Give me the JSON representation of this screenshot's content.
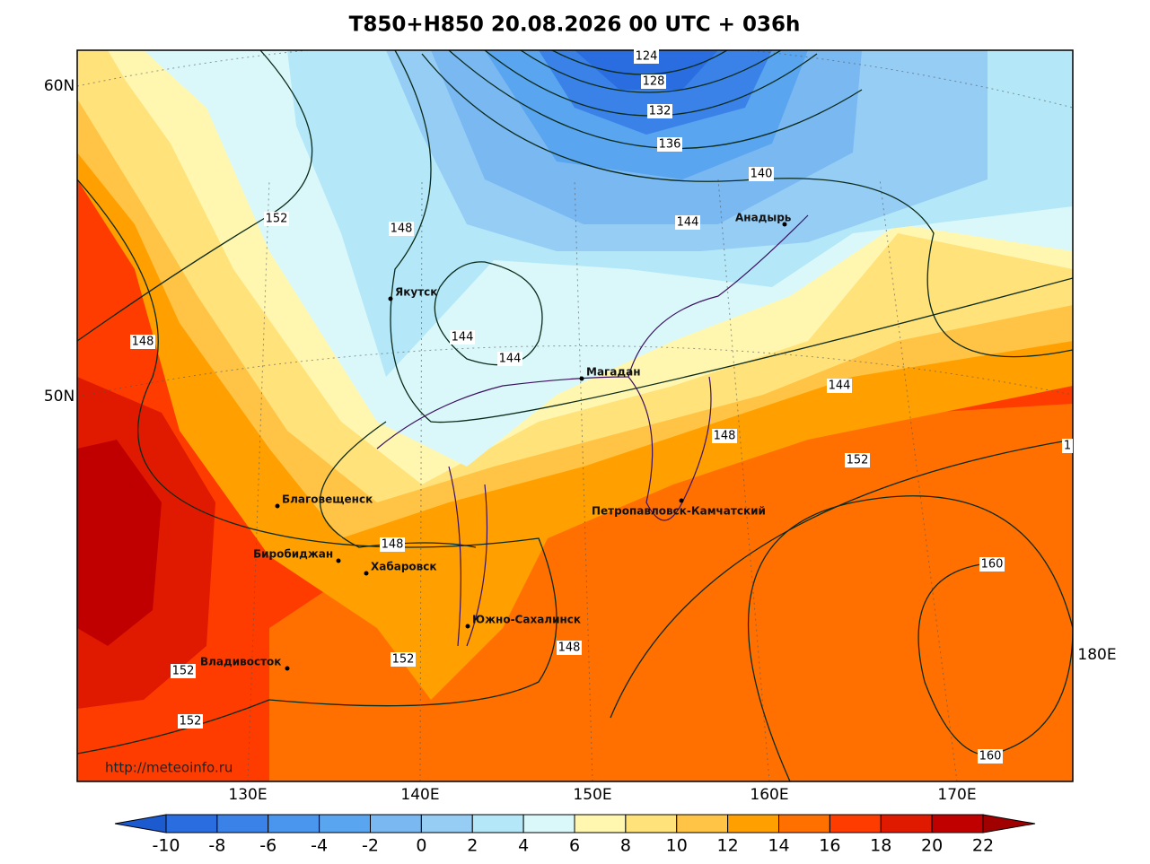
{
  "title": "T850+H850 20.08.2026 00 UTC + 036h",
  "lat_labels": [
    "60N",
    "50N"
  ],
  "lon_labels": [
    "130E",
    "140E",
    "150E",
    "160E",
    "170E",
    "180E"
  ],
  "cities": [
    "Якутск",
    "Магадан",
    "Анадырь",
    "Благовещенск",
    "Биробиджан",
    "Хабаровск",
    "Владивосток",
    "Южно-Сахалинск",
    "Петропавловск-Камчатский"
  ],
  "contour_labels": [
    "124",
    "128",
    "132",
    "136",
    "140",
    "144",
    "152",
    "148",
    "148",
    "144",
    "144",
    "144",
    "148",
    "152",
    "1",
    "148",
    "160",
    "152",
    "152",
    "148",
    "152",
    "160"
  ],
  "watermark": "http://meteoinfo.ru",
  "colorbar": {
    "ticks": [
      -10,
      -8,
      -6,
      -4,
      -2,
      0,
      2,
      4,
      6,
      8,
      10,
      12,
      14,
      16,
      18,
      20,
      22
    ],
    "colors": [
      "#1c5ad0",
      "#2a6de0",
      "#3a82e8",
      "#4a96ee",
      "#5aa5ef",
      "#7ab8f2",
      "#96cdf5",
      "#b4e8f8",
      "#daf8fa",
      "#fff7b0",
      "#ffe27a",
      "#ffc445",
      "#ffa000",
      "#ff7000",
      "#ff3c00",
      "#e01a00",
      "#c00000",
      "#a00000"
    ]
  }
}
